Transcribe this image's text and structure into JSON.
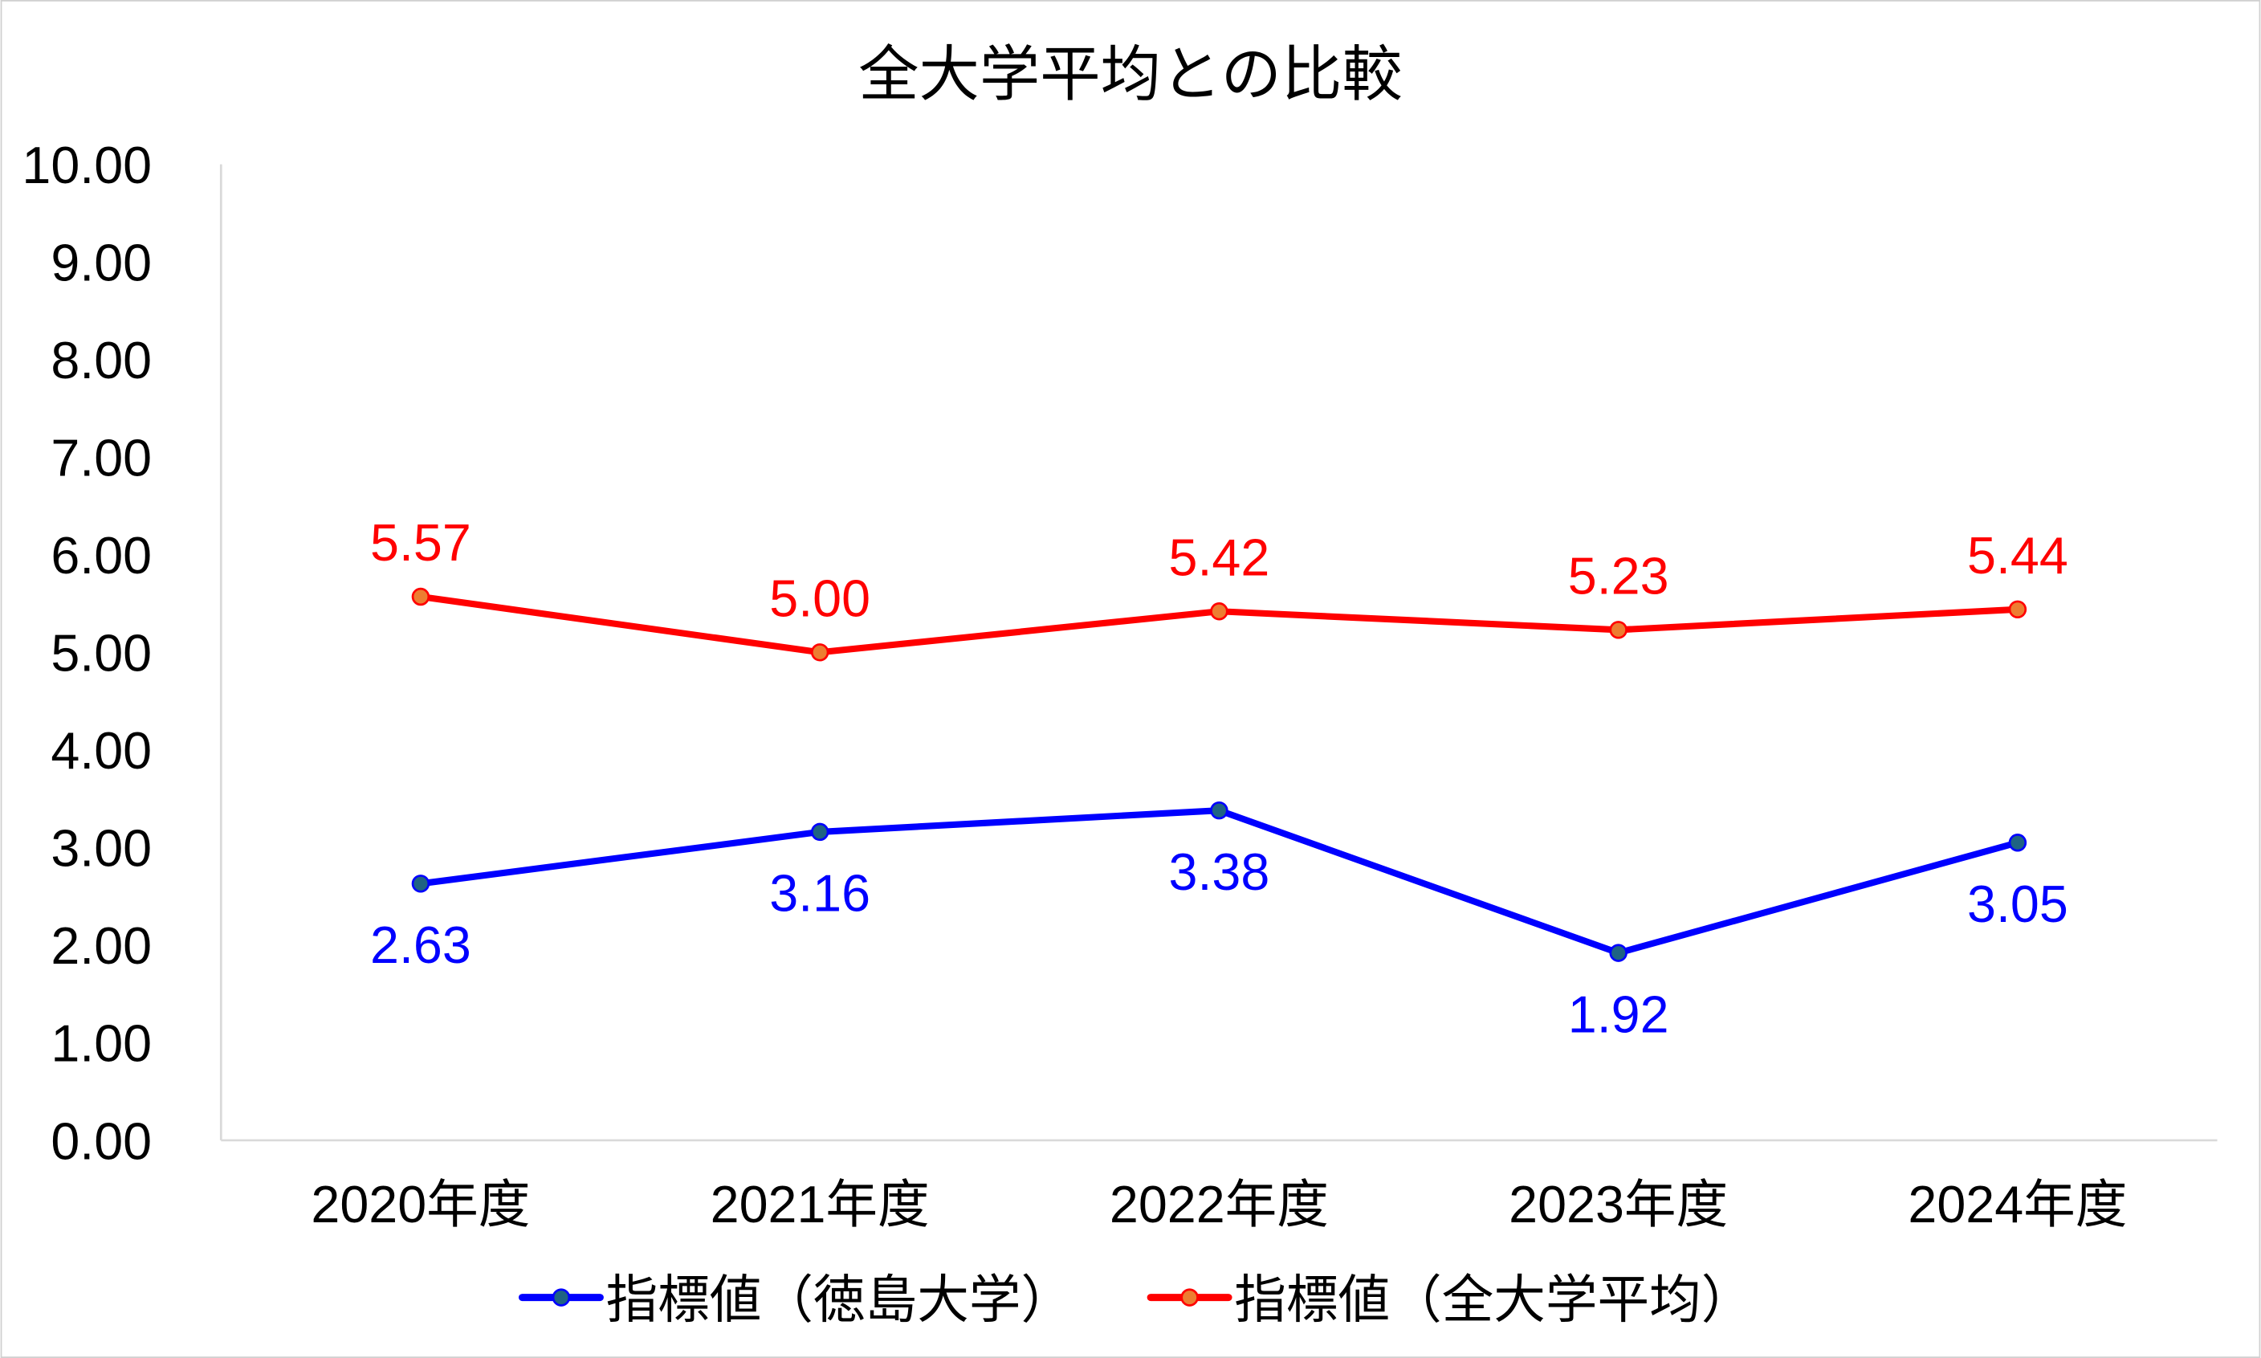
{
  "chart_data": {
    "type": "line",
    "title": "全大学平均との比較",
    "categories": [
      "2020年度",
      "2021年度",
      "2022年度",
      "2023年度",
      "2024年度"
    ],
    "ylim": [
      0,
      10
    ],
    "yticks": [
      "0.00",
      "1.00",
      "2.00",
      "3.00",
      "4.00",
      "5.00",
      "6.00",
      "7.00",
      "8.00",
      "9.00",
      "10.00"
    ],
    "grid": false,
    "legend_position": "bottom",
    "series": [
      {
        "name": "指標値（徳島大学）",
        "values": [
          2.63,
          3.16,
          3.38,
          1.92,
          3.05
        ],
        "labels": [
          "2.63",
          "3.16",
          "3.38",
          "1.92",
          "3.05"
        ],
        "line_color": "#0000FF",
        "marker_color": "#1F6383",
        "label_position": "below"
      },
      {
        "name": "指標値（全大学平均）",
        "values": [
          5.57,
          5.0,
          5.42,
          5.23,
          5.44
        ],
        "labels": [
          "5.57",
          "5.00",
          "5.42",
          "5.23",
          "5.44"
        ],
        "line_color": "#FF0000",
        "marker_color": "#ED7D31",
        "label_position": "above"
      }
    ]
  }
}
